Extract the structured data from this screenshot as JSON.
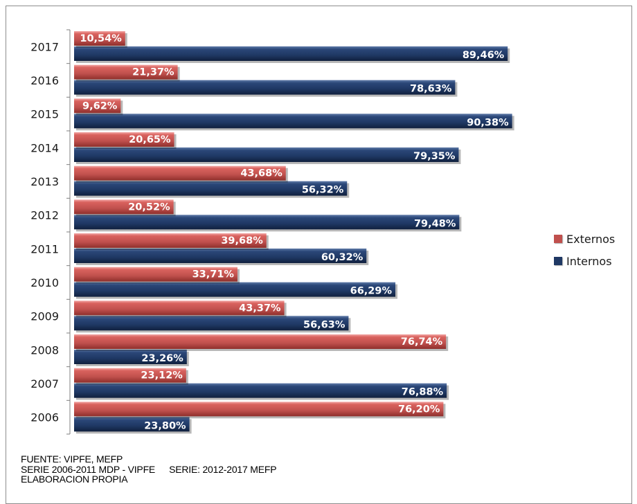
{
  "chart_data": {
    "type": "bar",
    "orientation": "horizontal",
    "stacked": false,
    "categories": [
      "2017",
      "2016",
      "2015",
      "2014",
      "2013",
      "2012",
      "2011",
      "2010",
      "2009",
      "2008",
      "2007",
      "2006"
    ],
    "series": [
      {
        "name": "Externos",
        "color": "#c0504d",
        "values": [
          10.54,
          21.37,
          9.62,
          20.65,
          43.68,
          20.52,
          39.68,
          33.71,
          43.37,
          76.74,
          23.12,
          76.2
        ],
        "labels": [
          "10,54%",
          "21,37%",
          "9,62%",
          "20,65%",
          "43,68%",
          "20,52%",
          "39,68%",
          "33,71%",
          "43,37%",
          "76,74%",
          "23,12%",
          "76,20%"
        ]
      },
      {
        "name": "Internos",
        "color": "#1f3864",
        "values": [
          89.46,
          78.63,
          90.38,
          79.35,
          56.32,
          79.48,
          60.32,
          66.29,
          56.63,
          23.26,
          76.88,
          23.8
        ],
        "labels": [
          "89,46%",
          "78,63%",
          "90,38%",
          "79,35%",
          "56,32%",
          "79,48%",
          "60,32%",
          "66,29%",
          "56,63%",
          "23,26%",
          "76,88%",
          "23,80%"
        ]
      }
    ],
    "xlim": [
      0,
      100
    ],
    "grid": false,
    "legend_position": "right"
  },
  "source": {
    "line1": "FUENTE: VIPFE, MEFP",
    "line2a": "SERIE 2006-2011 MDP - VIPFE",
    "line2b": "SERIE: 2012-2017 MEFP",
    "line3": "ELABORACION PROPIA"
  }
}
